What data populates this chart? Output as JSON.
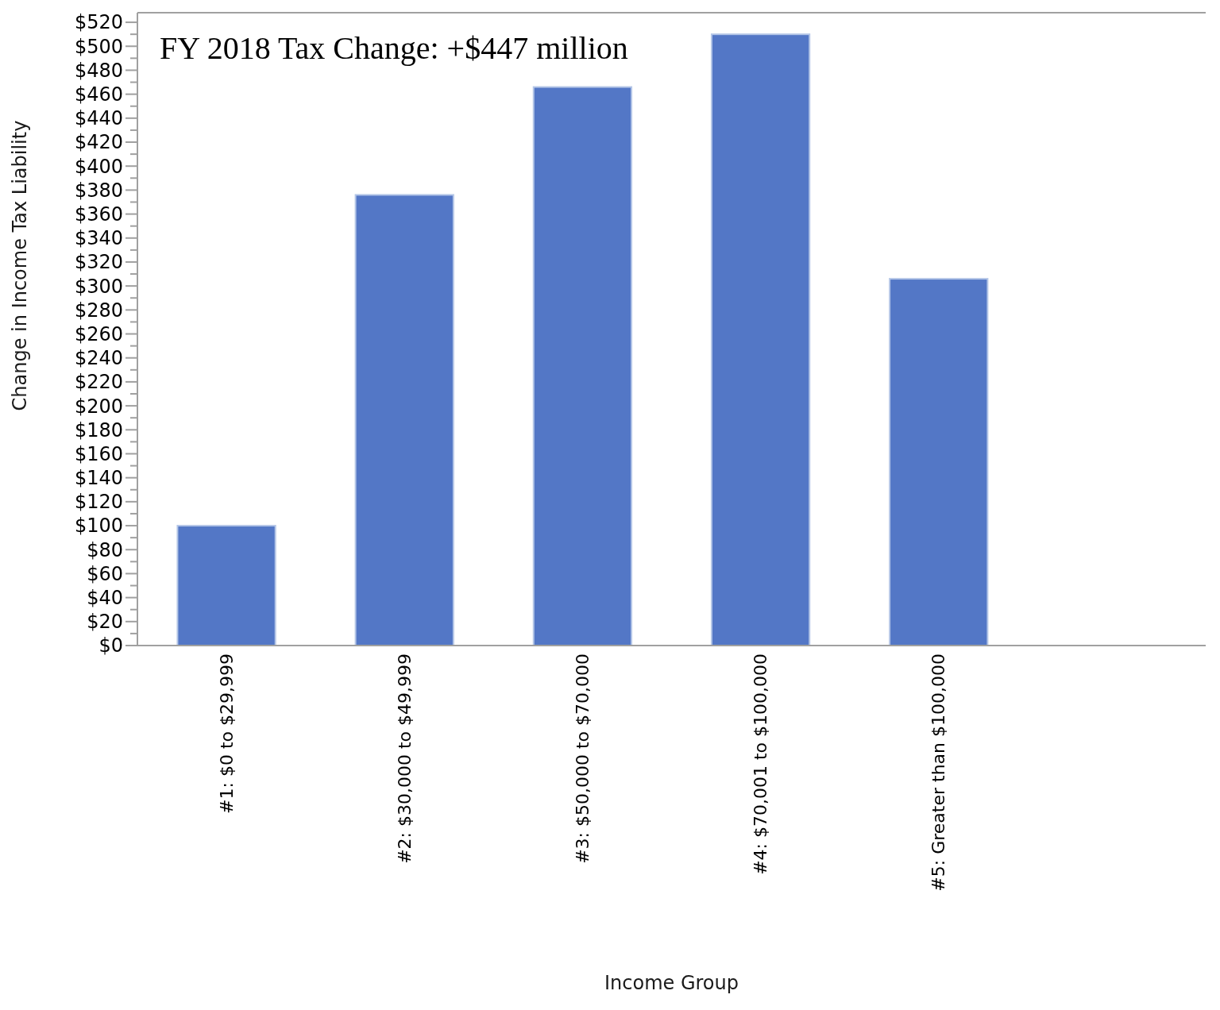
{
  "chart_data": {
    "type": "bar",
    "title": "FY 2018 Tax Change: +$447 million",
    "xlabel": "Income Group",
    "ylabel": "Change in Income Tax Liability",
    "categories": [
      "#1: $0 to $29,999",
      "#2: $30,000 to $49,999",
      "#3: $50,000 to $70,000",
      "#4: $70,001 to $100,000",
      "#5: Greater than $100,000",
      null
    ],
    "values": [
      100,
      376,
      466,
      510,
      306,
      null
    ],
    "color": "#5377c6",
    "ylim": [
      0,
      528
    ],
    "yticks": [
      {
        "value": 0,
        "label": "$0"
      },
      {
        "value": 10,
        "label": null
      },
      {
        "value": 20,
        "label": "$20"
      },
      {
        "value": 30,
        "label": null
      },
      {
        "value": 40,
        "label": "$40"
      },
      {
        "value": 50,
        "label": null
      },
      {
        "value": 60,
        "label": "$60"
      },
      {
        "value": 70,
        "label": null
      },
      {
        "value": 80,
        "label": "$80"
      },
      {
        "value": 90,
        "label": null
      },
      {
        "value": 100,
        "label": "$100"
      },
      {
        "value": 110,
        "label": null
      },
      {
        "value": 120,
        "label": "$120"
      },
      {
        "value": 130,
        "label": null
      },
      {
        "value": 140,
        "label": "$140"
      },
      {
        "value": 150,
        "label": null
      },
      {
        "value": 160,
        "label": "$160"
      },
      {
        "value": 170,
        "label": null
      },
      {
        "value": 180,
        "label": "$180"
      },
      {
        "value": 190,
        "label": null
      },
      {
        "value": 200,
        "label": "$200"
      },
      {
        "value": 210,
        "label": null
      },
      {
        "value": 220,
        "label": "$220"
      },
      {
        "value": 230,
        "label": null
      },
      {
        "value": 240,
        "label": "$240"
      },
      {
        "value": 250,
        "label": null
      },
      {
        "value": 260,
        "label": "$260"
      },
      {
        "value": 270,
        "label": null
      },
      {
        "value": 280,
        "label": "$280"
      },
      {
        "value": 290,
        "label": null
      },
      {
        "value": 300,
        "label": "$300"
      },
      {
        "value": 310,
        "label": null
      },
      {
        "value": 320,
        "label": "$320"
      },
      {
        "value": 330,
        "label": null
      },
      {
        "value": 340,
        "label": "$340"
      },
      {
        "value": 350,
        "label": null
      },
      {
        "value": 360,
        "label": "$360"
      },
      {
        "value": 370,
        "label": null
      },
      {
        "value": 380,
        "label": "$380"
      },
      {
        "value": 390,
        "label": null
      },
      {
        "value": 400,
        "label": "$400"
      },
      {
        "value": 410,
        "label": null
      },
      {
        "value": 420,
        "label": "$420"
      },
      {
        "value": 430,
        "label": null
      },
      {
        "value": 440,
        "label": "$440"
      },
      {
        "value": 450,
        "label": null
      },
      {
        "value": 460,
        "label": "$460"
      },
      {
        "value": 470,
        "label": null
      },
      {
        "value": 480,
        "label": "$480"
      },
      {
        "value": 490,
        "label": null
      },
      {
        "value": 500,
        "label": "$500"
      },
      {
        "value": 510,
        "label": null
      },
      {
        "value": 520,
        "label": "$520"
      }
    ],
    "grid": false
  }
}
